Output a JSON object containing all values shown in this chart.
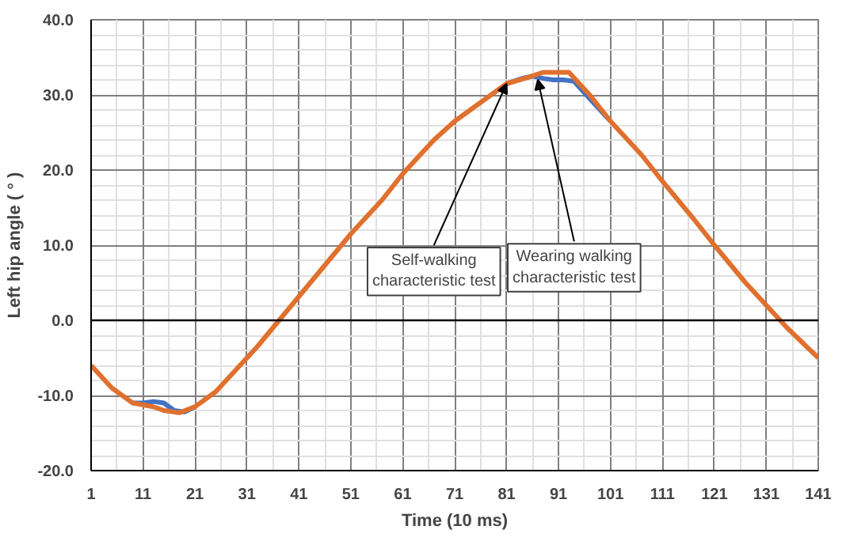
{
  "chart_data": {
    "type": "line",
    "xlabel": "Time (10 ms)",
    "ylabel": "Left hip angle ( ° )",
    "xlim": [
      1,
      141
    ],
    "xticks": [
      1,
      11,
      21,
      31,
      41,
      51,
      61,
      71,
      81,
      91,
      101,
      111,
      121,
      131,
      141
    ],
    "ylim": [
      -20,
      40
    ],
    "yticks": [
      {
        "value": -20,
        "label": "-20.0"
      },
      {
        "value": -10,
        "label": "-10.0"
      },
      {
        "value": 0,
        "label": "0.0"
      },
      {
        "value": 10,
        "label": "10.0"
      },
      {
        "value": 20,
        "label": "20.0"
      },
      {
        "value": 30,
        "label": "30.0"
      },
      {
        "value": 40,
        "label": "40.0"
      }
    ],
    "grid": true,
    "line_style": "solid",
    "marker": "none",
    "ref_lines": [
      {
        "axis": "y",
        "value": 0,
        "color": "#000000"
      }
    ],
    "series": [
      {
        "color": "#4472c4",
        "x": [
          9,
          11,
          13,
          15,
          17,
          19,
          21
        ],
        "values": [
          -11,
          -11,
          -10.8,
          -11,
          -12,
          -12.2,
          -11.5
        ]
      },
      {
        "color": "#4472c4",
        "x": [
          81,
          84,
          86,
          88,
          90,
          92,
          94,
          97,
          99,
          101
        ],
        "values": [
          31.5,
          32.2,
          32.5,
          32.2,
          32,
          32,
          31.8,
          29.5,
          28,
          26.5
        ]
      },
      {
        "color": "#e0702e",
        "x": [
          1,
          5,
          9,
          13,
          15,
          18,
          21,
          25,
          29,
          33,
          36,
          39,
          45,
          51,
          57,
          61,
          67,
          71,
          77,
          81,
          85,
          88,
          93,
          97,
          101,
          107,
          111,
          117,
          121,
          127,
          131,
          135,
          141
        ],
        "values": [
          -6,
          -9,
          -11,
          -11.5,
          -12,
          -12.3,
          -11.5,
          -9.5,
          -6.5,
          -3.5,
          -1,
          1.5,
          6.5,
          11.5,
          16,
          19.5,
          24,
          26.5,
          29.5,
          31.5,
          32.3,
          33,
          33,
          30,
          26.5,
          22,
          18.5,
          13.5,
          10,
          5,
          2,
          -1,
          -5
        ]
      }
    ],
    "annotations": [
      {
        "text": "Self-walking\ncharacteristic test",
        "x": 81,
        "y": 31.5
      },
      {
        "text": "Wearing walking\ncharacteristic test",
        "x": 87,
        "y": 32
      }
    ]
  }
}
